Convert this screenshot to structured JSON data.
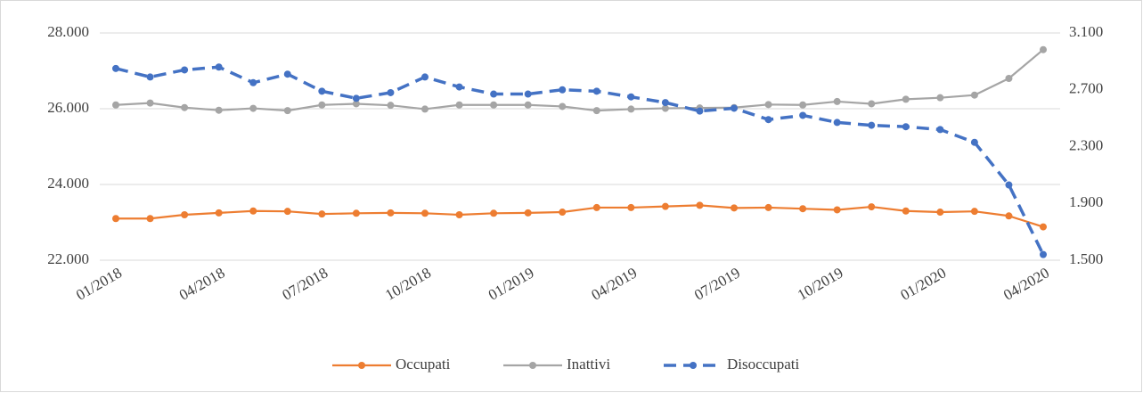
{
  "chart_data": {
    "type": "line",
    "categories": [
      "01/2018",
      null,
      null,
      "04/2018",
      null,
      null,
      "07/2018",
      null,
      null,
      "10/2018",
      null,
      null,
      "01/2019",
      null,
      null,
      "04/2019",
      null,
      null,
      "07/2019",
      null,
      null,
      "10/2019",
      null,
      null,
      "01/2020",
      null,
      null,
      "04/2020"
    ],
    "series": [
      {
        "name": "Occupati",
        "color": "#ed7d31",
        "linestyle": "solid",
        "values": [
          23100,
          23100,
          23200,
          23250,
          23300,
          23290,
          23220,
          23240,
          23250,
          23240,
          23200,
          23240,
          23250,
          23270,
          23390,
          23390,
          23420,
          23450,
          23380,
          23390,
          23360,
          23330,
          23410,
          23300,
          23270,
          23290,
          23170,
          22880
        ]
      },
      {
        "name": "Inattivi",
        "color": "#a5a5a5",
        "linestyle": "solid",
        "values": [
          26100,
          26150,
          26030,
          25960,
          26010,
          25950,
          26100,
          26130,
          26090,
          25990,
          26100,
          26100,
          26100,
          26060,
          25950,
          25990,
          26010,
          26020,
          26030,
          26110,
          26100,
          26190,
          26130,
          26250,
          26290,
          26360,
          26800,
          27560
        ]
      },
      {
        "name": "Disoccupati",
        "color": "#4472c4",
        "linestyle": "dashed",
        "axis": "y2",
        "values": [
          2850,
          2790,
          2840,
          2860,
          2750,
          2810,
          2690,
          2640,
          2680,
          2790,
          2720,
          2670,
          2670,
          2700,
          2690,
          2650,
          2610,
          2550,
          2570,
          2490,
          2520,
          2470,
          2450,
          2440,
          2420,
          2330,
          2030,
          1540
        ]
      }
    ],
    "ylim": [
      22000,
      28000
    ],
    "yticks": [
      {
        "value": 22000,
        "label": "22.000"
      },
      {
        "value": 24000,
        "label": "24.000"
      },
      {
        "value": 26000,
        "label": "26.000"
      },
      {
        "value": 28000,
        "label": "28.000"
      }
    ],
    "y2lim": [
      1500,
      3100
    ],
    "y2ticks": [
      {
        "value": 1500,
        "label": "1.500"
      },
      {
        "value": 1900,
        "label": "1.900"
      },
      {
        "value": 2300,
        "label": "2.300"
      },
      {
        "value": 2700,
        "label": "2.700"
      },
      {
        "value": 3100,
        "label": "3.100"
      }
    ],
    "grid": true,
    "legend": "bottom"
  }
}
